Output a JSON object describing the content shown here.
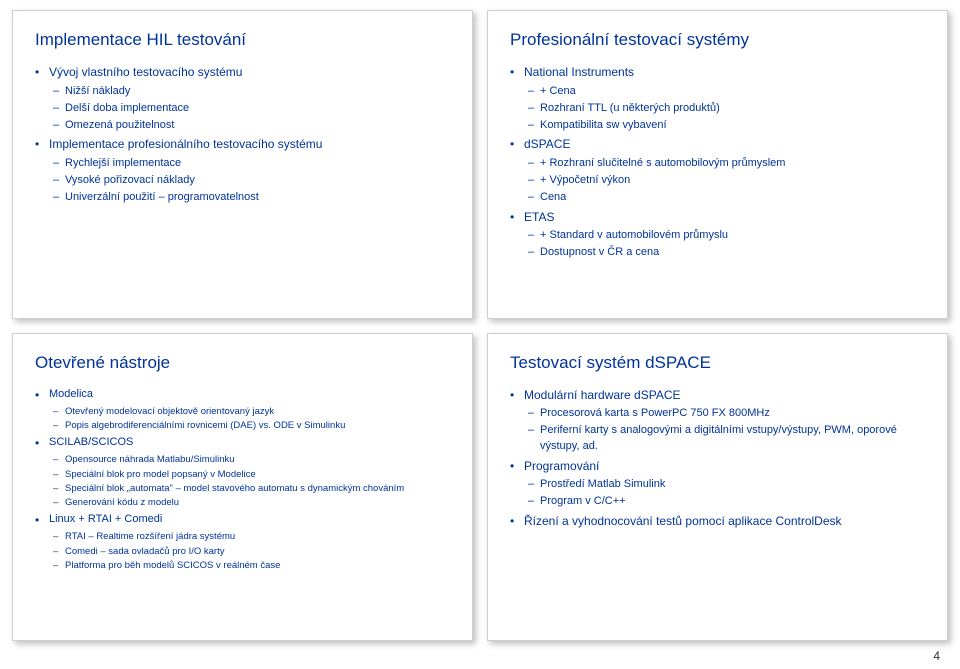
{
  "page_number": "4",
  "colors": {
    "text": "#003399",
    "background": "#ffffff",
    "slide_border": "#cfcfcf"
  },
  "slides": [
    {
      "title": "Implementace HIL testování",
      "items": [
        {
          "text": "Vývoj vlastního testovacího systému",
          "sub": [
            "Nižší náklady",
            "Delší doba implementace",
            "Omezená použitelnost"
          ]
        },
        {
          "text": "Implementace profesionálního testovacího systému",
          "sub": [
            "Rychlejší implementace",
            "Vysoké pořizovací náklady",
            "Univerzální použití – programovatelnost"
          ]
        }
      ]
    },
    {
      "title": "Profesionální testovací systémy",
      "items": [
        {
          "text": "National Instruments",
          "sub": [
            "+ Cena",
            "Rozhraní TTL (u některých produktů)",
            "Kompatibilita sw vybavení"
          ]
        },
        {
          "text": "dSPACE",
          "sub": [
            "+ Rozhraní slučitelné s automobilovým průmyslem",
            "+ Výpočetní výkon",
            "Cena"
          ]
        },
        {
          "text": "ETAS",
          "sub": [
            "+ Standard v automobilovém průmyslu",
            "Dostupnost v ČR a cena"
          ]
        }
      ]
    },
    {
      "title": "Otevřené nástroje",
      "items": [
        {
          "text": "Modelica",
          "sub": [
            "Otevřený modelovací objektově orientovaný jazyk",
            "Popis algebrodiferenciálními rovnicemi (DAE) vs. ODE v Simulinku"
          ]
        },
        {
          "text": "SCILAB/SCICOS",
          "sub": [
            "Opensource náhrada Matlabu/Simulinku",
            "Speciální blok pro model popsaný v Modelice",
            "Speciální blok „automata\" – model stavového automatu s dynamickým chováním",
            "Generování kódu z modelu"
          ]
        },
        {
          "text": "Linux + RTAI + Comedi",
          "sub": [
            "RTAI – Realtime rozšíření jádra systému",
            "Comedi – sada ovladačů pro I/O karty",
            "Platforma pro běh modelů SCICOS v reálném čase"
          ]
        }
      ]
    },
    {
      "title": "Testovací systém dSPACE",
      "items": [
        {
          "text": "Modulární hardware dSPACE",
          "sub": [
            "Procesorová karta s PowerPC 750 FX 800MHz",
            "Periferní karty s analogovými a digitálními vstupy/výstupy, PWM, oporové výstupy, ad."
          ]
        },
        {
          "text": "Programování",
          "sub": [
            "Prostředí Matlab Simulink",
            "Program v C/C++"
          ]
        },
        {
          "text": "Řízení a vyhodnocování testů pomocí aplikace ControlDesk",
          "sub": []
        }
      ]
    }
  ]
}
